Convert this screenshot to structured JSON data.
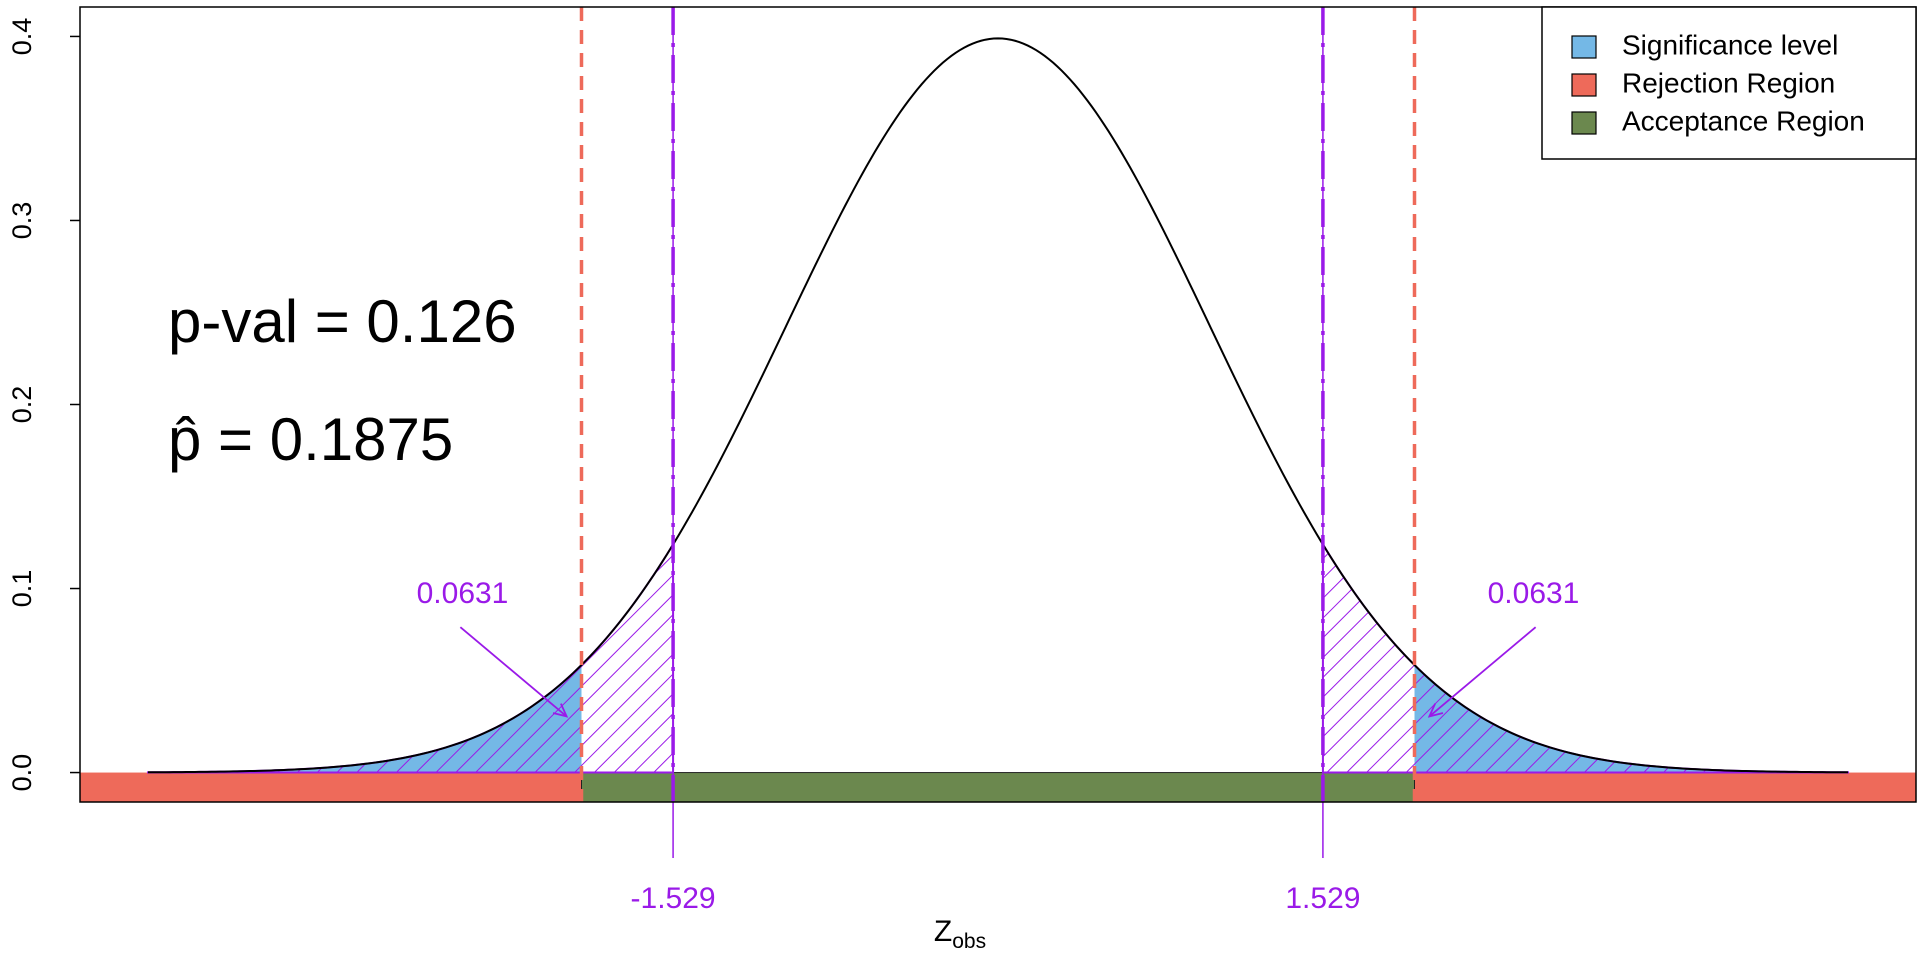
{
  "chart_data": {
    "type": "normal-test",
    "x_label": "Z",
    "x_label_sub": "obs",
    "xlim": [
      -4.32,
      4.32
    ],
    "ylim": [
      -0.016,
      0.416
    ],
    "yticks": [
      {
        "value": 0,
        "label": "0.0"
      },
      0.1,
      0.2,
      0.3,
      0.4
    ],
    "curve": {
      "mean": 0,
      "sd": 1,
      "from": -4,
      "to": 4
    },
    "critical_values": [
      -1.96,
      1.96
    ],
    "z_obs": [
      -1.529,
      1.529
    ],
    "tail_areas": [
      0.0631,
      0.0631
    ],
    "annotations": [
      "p-val = 0.126",
      "p̂ = 0.1875"
    ],
    "line_colors": {
      "curve": "#000000",
      "critical": "#ee6a5a",
      "z_obs": "#9a1ae8"
    },
    "legend_position": "topright",
    "legend": [
      {
        "name": "Significance level",
        "color": "#74b8e6"
      },
      {
        "name": "Rejection Region",
        "color": "#ee6a5a"
      },
      {
        "name": "Acceptance Region",
        "color": "#6b884e"
      }
    ]
  }
}
